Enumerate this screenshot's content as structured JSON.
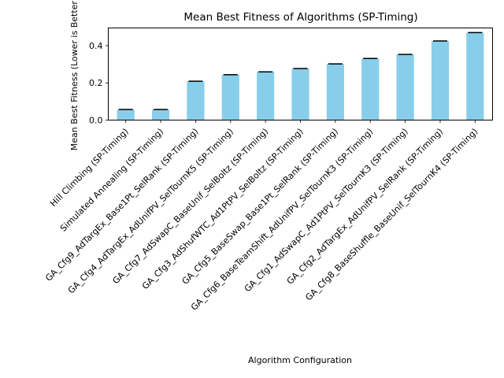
{
  "chart_data": {
    "type": "bar",
    "title": "Mean Best Fitness of Algorithms (SP-Timing)",
    "xlabel": "Algorithm Configuration",
    "ylabel": "Mean Best Fitness (Lower is Better)",
    "ylim": [
      0,
      0.495
    ],
    "yticks": [
      0.0,
      0.2,
      0.4
    ],
    "ytick_labels": [
      "0.0",
      "0.2",
      "0.4"
    ],
    "bar_color": "#87ceeb",
    "errorbar_color": "#000000",
    "grid": false,
    "categories": [
      "Hill Climbing (SP-Timing)",
      "Simulated Annealing (SP-Timing)",
      "GA_Cfg9_AdTargEx_Base1Pt_SelRank (SP-Timing)",
      "GA_Cfg4_AdTargEx_AdUnifPV_SelTournK5 (SP-Timing)",
      "GA_Cfg7_AdSwapC_BaseUnif_SelBoltz (SP-Timing)",
      "GA_Cfg3_AdShufWTC_Ad1PtPV_SelBoltz (SP-Timing)",
      "GA_Cfg5_BaseSwap_Base1Pt_SelRank (SP-Timing)",
      "GA_Cfg6_BaseTeamShift_AdUnifPV_SelTournK3 (SP-Timing)",
      "GA_Cfg1_AdSwapC_Ad1PtPV_SelTournK3 (SP-Timing)",
      "GA_Cfg2_AdTargEx_AdUnifPV_SelRank (SP-Timing)",
      "GA_Cfg8_BaseShuffle_BaseUnif_SelTournK4 (SP-Timing)"
    ],
    "values": [
      0.057,
      0.057,
      0.209,
      0.244,
      0.259,
      0.277,
      0.302,
      0.331,
      0.353,
      0.425,
      0.47
    ],
    "errors": [
      0.0,
      0.0,
      0.0,
      0.0,
      0.0,
      0.0,
      0.0,
      0.0,
      0.0,
      0.0,
      0.0
    ]
  }
}
